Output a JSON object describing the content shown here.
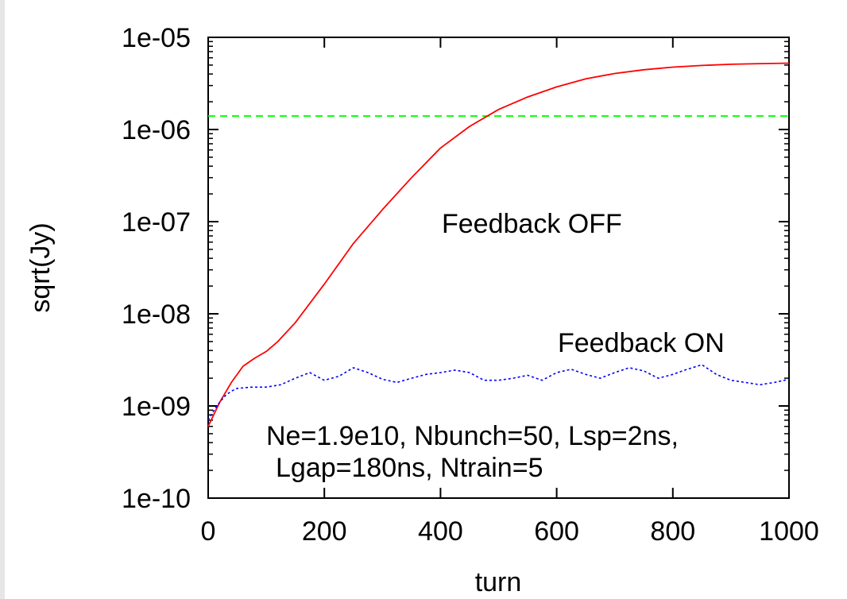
{
  "chart_data": {
    "type": "line",
    "xlabel": "turn",
    "ylabel": "sqrt(Jy)",
    "y_scale": "log",
    "xlim": [
      0,
      1000
    ],
    "ylim": [
      1e-10,
      1e-05
    ],
    "x_ticks": [
      "0",
      "200",
      "400",
      "600",
      "800",
      "1000"
    ],
    "y_ticks": [
      "1e-10",
      "1e-09",
      "1e-08",
      "1e-07",
      "1e-06",
      "1e-05"
    ],
    "grid": false,
    "colors": {
      "feedback_off": "#ff0000",
      "feedback_on": "#0000ff",
      "threshold": "#00ff00"
    },
    "annotations": {
      "feedback_off": "Feedback OFF",
      "feedback_on": "Feedback ON",
      "params_line1": "Ne=1.9e10, Nbunch=50, Lsp=2ns,",
      "params_line2": "Lgap=180ns, Ntrain=5"
    },
    "threshold_line": {
      "style": "dashed",
      "y": 1.4e-06
    },
    "series": [
      {
        "name": "Feedback OFF",
        "style": "solid",
        "x": [
          0,
          20,
          40,
          60,
          80,
          100,
          120,
          150,
          200,
          250,
          300,
          350,
          400,
          450,
          500,
          550,
          600,
          650,
          700,
          750,
          800,
          850,
          900,
          950,
          1000
        ],
        "y": [
          6e-10,
          1.1e-09,
          1.8e-09,
          2.7e-09,
          3.3e-09,
          3.9e-09,
          5e-09,
          8e-09,
          2.1e-08,
          5.8e-08,
          1.35e-07,
          3e-07,
          6.3e-07,
          1.08e-06,
          1.65e-06,
          2.25e-06,
          2.9e-06,
          3.55e-06,
          4.05e-06,
          4.45e-06,
          4.75e-06,
          4.95e-06,
          5.1e-06,
          5.18e-06,
          5.25e-06
        ]
      },
      {
        "name": "Feedback ON",
        "style": "dotted",
        "x": [
          0,
          10,
          20,
          30,
          40,
          50,
          75,
          100,
          125,
          150,
          175,
          200,
          225,
          250,
          275,
          300,
          325,
          350,
          375,
          400,
          425,
          450,
          475,
          500,
          525,
          550,
          575,
          600,
          625,
          650,
          675,
          700,
          725,
          750,
          775,
          800,
          825,
          850,
          875,
          900,
          925,
          950,
          975,
          1000
        ],
        "y": [
          7e-10,
          9e-10,
          1.1e-09,
          1.3e-09,
          1.45e-09,
          1.55e-09,
          1.6e-09,
          1.6e-09,
          1.7e-09,
          2e-09,
          2.3e-09,
          1.9e-09,
          2.1e-09,
          2.6e-09,
          2.3e-09,
          1.95e-09,
          1.8e-09,
          2e-09,
          2.2e-09,
          2.3e-09,
          2.45e-09,
          2.3e-09,
          1.9e-09,
          1.9e-09,
          2e-09,
          2.15e-09,
          1.9e-09,
          2.3e-09,
          2.5e-09,
          2.2e-09,
          2e-09,
          2.3e-09,
          2.6e-09,
          2.4e-09,
          2e-09,
          2.2e-09,
          2.5e-09,
          2.8e-09,
          2.2e-09,
          1.9e-09,
          1.8e-09,
          1.7e-09,
          1.8e-09,
          1.95e-09
        ]
      }
    ]
  }
}
